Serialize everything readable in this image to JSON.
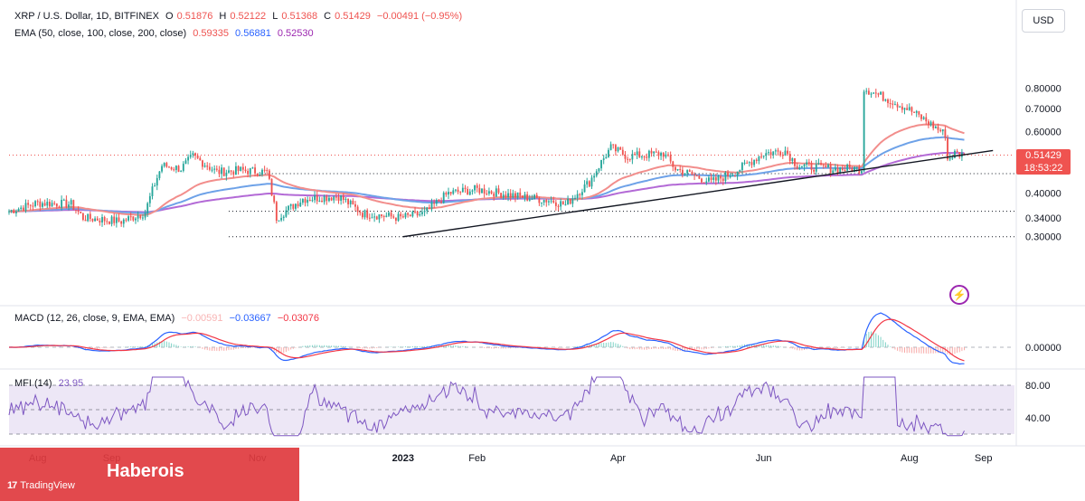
{
  "header": {
    "symbol": "XRP / U.S. Dollar, 1D, BITFINEX",
    "o_label": "O",
    "o": "0.51876",
    "h_label": "H",
    "h": "0.52122",
    "l_label": "L",
    "l": "0.51368",
    "c_label": "C",
    "c": "0.51429",
    "change": "−0.00491 (−0.95%)"
  },
  "ema_legend": {
    "label": "EMA (50, close, 100, close, 200, close)",
    "v1": "0.59335",
    "v2": "0.56881",
    "v3": "0.52530"
  },
  "macd_legend": {
    "label": "MACD (12, 26, close, 9, EMA, EMA)",
    "v1": "−0.00591",
    "v2": "−0.03667",
    "v3": "−0.03076"
  },
  "mfi_legend": {
    "label": "MFI (14)",
    "v1": "23.95"
  },
  "currency": "USD",
  "last_price": {
    "price": "0.51429",
    "countdown": "18:53:22"
  },
  "brand": {
    "name": "Haberois",
    "platform": "TradingView"
  },
  "colors": {
    "up": "#26a69a",
    "down": "#ef5350",
    "ema50": "#f28e8c",
    "ema100": "#6ea2e8",
    "ema200": "#b36ad6",
    "macd": "#2962ff",
    "signal": "#f23645",
    "mfi": "#7e57c2",
    "mfi_band": "#ede7f6",
    "trend": "#131722"
  },
  "chart_data": [
    {
      "type": "candlestick",
      "title": "XRP / U.S. Dollar, 1D, BITFINEX",
      "y_scale": "log",
      "ylim": [
        0.285,
        1.0
      ],
      "y_ticks": [
        "0.80000",
        "0.70000",
        "0.60000",
        "0.40000",
        "0.34000",
        "0.30000"
      ],
      "x_ticks": [
        "Aug",
        "Sep",
        "Nov",
        "2023",
        "Feb",
        "Apr",
        "Jun",
        "Aug",
        "Sep"
      ],
      "price_path": [
        [
          "2022-07-20",
          0.355
        ],
        [
          "2022-08-01",
          0.375
        ],
        [
          "2022-08-15",
          0.372
        ],
        [
          "2022-08-20",
          0.34
        ],
        [
          "2022-09-05",
          0.332
        ],
        [
          "2022-09-15",
          0.352
        ],
        [
          "2022-09-22",
          0.48
        ],
        [
          "2022-09-30",
          0.47
        ],
        [
          "2022-10-05",
          0.51
        ],
        [
          "2022-10-15",
          0.46
        ],
        [
          "2022-10-25",
          0.465
        ],
        [
          "2022-11-05",
          0.46
        ],
        [
          "2022-11-08",
          0.37
        ],
        [
          "2022-11-09",
          0.34
        ],
        [
          "2022-11-20",
          0.385
        ],
        [
          "2022-12-05",
          0.392
        ],
        [
          "2022-12-15",
          0.35
        ],
        [
          "2022-12-31",
          0.34
        ],
        [
          "2023-01-10",
          0.35
        ],
        [
          "2023-01-20",
          0.4
        ],
        [
          "2023-02-01",
          0.41
        ],
        [
          "2023-02-20",
          0.39
        ],
        [
          "2023-03-05",
          0.38
        ],
        [
          "2023-03-10",
          0.37
        ],
        [
          "2023-03-20",
          0.43
        ],
        [
          "2023-03-29",
          0.54
        ],
        [
          "2023-04-05",
          0.51
        ],
        [
          "2023-04-20",
          0.52
        ],
        [
          "2023-04-25",
          0.47
        ],
        [
          "2023-05-10",
          0.43
        ],
        [
          "2023-05-20",
          0.46
        ],
        [
          "2023-06-01",
          0.52
        ],
        [
          "2023-06-10",
          0.53
        ],
        [
          "2023-06-15",
          0.48
        ],
        [
          "2023-06-30",
          0.47
        ],
        [
          "2023-07-12",
          0.47
        ],
        [
          "2023-07-13",
          0.8
        ],
        [
          "2023-07-20",
          0.76
        ],
        [
          "2023-07-31",
          0.7
        ],
        [
          "2023-08-10",
          0.63
        ],
        [
          "2023-08-16",
          0.59
        ],
        [
          "2023-08-17",
          0.5
        ],
        [
          "2023-08-20",
          0.52
        ],
        [
          "2023-08-24",
          0.5143
        ]
      ],
      "ema_values": {
        "EMA 50": 0.59335,
        "EMA 100": 0.56881,
        "EMA 200": 0.5253
      },
      "last": {
        "open": 0.51876,
        "high": 0.52122,
        "low": 0.51368,
        "close": 0.51429
      },
      "horizontal_levels": [
        0.455,
        0.355,
        0.3
      ],
      "trendline": {
        "from": [
          "2023-01-01",
          0.3
        ],
        "to": [
          "2023-09-05",
          0.53
        ]
      }
    },
    {
      "type": "line",
      "title": "MACD (12, 26, close, 9, EMA, EMA)",
      "y_ticks": [
        "0.00000"
      ],
      "latest": {
        "histogram": -0.00591,
        "macd": -0.03667,
        "signal": -0.03076
      }
    },
    {
      "type": "line",
      "title": "MFI (14)",
      "y_ticks": [
        "80.00",
        "40.00"
      ],
      "band": [
        20,
        80
      ],
      "latest": 23.95
    }
  ]
}
